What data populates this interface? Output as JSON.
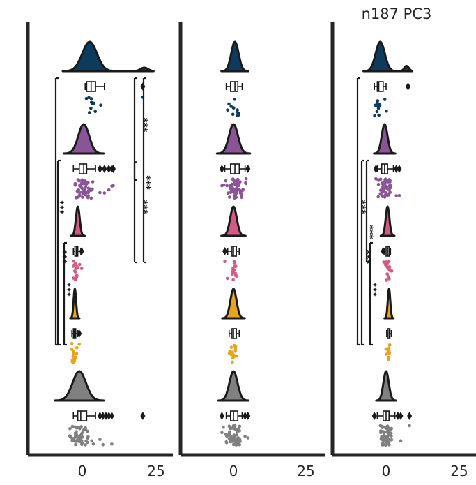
{
  "chart_data": [
    {
      "type": "raincloud",
      "title": "",
      "xlim": [
        -18,
        25
      ],
      "xticks": [
        0,
        25
      ],
      "groups": [
        {
          "name": "",
          "color": "#0d3b5e",
          "kde_peak": 2.5,
          "kde_width": 3.5,
          "secondary_peak": 21,
          "secondary_weight": 0.12,
          "box": [
            1.5,
            3,
            4.5,
            1,
            7.5
          ],
          "outliers": [
            20.5
          ]
        },
        {
          "name": "",
          "color": "#8a5597",
          "kde_peak": 0.5,
          "kde_width": 2.6,
          "secondary_peak": null,
          "secondary_weight": 0,
          "box": [
            -1,
            0.5,
            1.5,
            -3,
            4.5
          ],
          "outliers": [
            6,
            7.5,
            9,
            10,
            10.5
          ]
        },
        {
          "name": "",
          "color": "#d45a86",
          "kde_peak": -1.5,
          "kde_width": 0.9,
          "secondary_peak": null,
          "secondary_weight": 0,
          "box": [
            -2.5,
            -2,
            -1.5,
            -3,
            -0.5
          ],
          "outliers": [
            -0.2
          ]
        },
        {
          "name": "",
          "color": "#e8a320",
          "kde_peak": -2.5,
          "kde_width": 0.6,
          "secondary_peak": null,
          "secondary_weight": 0,
          "box": [
            -3,
            -2.7,
            -2.2,
            -3.5,
            -1.5
          ],
          "outliers": [
            -1
          ]
        },
        {
          "name": "",
          "color": "#808080",
          "kde_peak": -1,
          "kde_width": 3.2,
          "secondary_peak": null,
          "secondary_weight": 0,
          "box": [
            -1.5,
            -0.5,
            1.5,
            -3,
            4.5
          ],
          "outliers": [
            6,
            7,
            8,
            9,
            10,
            20.5
          ]
        }
      ],
      "significance": [
        {
          "from": 0,
          "to": 1,
          "label": "***"
        },
        {
          "from": 1,
          "to": 2,
          "label": "***"
        },
        {
          "from": 0,
          "to": 2,
          "label": "***"
        },
        {
          "from": 1,
          "to": 3,
          "label": "***"
        },
        {
          "from": 2,
          "to": 3,
          "label": "***"
        },
        {
          "from": 0,
          "to": 3,
          "label": "***"
        }
      ]
    },
    {
      "type": "raincloud",
      "title": "",
      "xlim": [
        -18,
        25
      ],
      "xticks": [
        0,
        25
      ],
      "groups": [
        {
          "name": "",
          "color": "#0d3b5e",
          "kde_peak": 0.5,
          "kde_width": 1.8,
          "secondary_peak": null,
          "secondary_weight": 0,
          "box": [
            -1,
            0.5,
            1.5,
            -2.5,
            3
          ],
          "outliers": []
        },
        {
          "name": "",
          "color": "#8a5597",
          "kde_peak": 0,
          "kde_width": 2.2,
          "secondary_peak": null,
          "secondary_weight": 0,
          "box": [
            -1,
            0.5,
            2,
            -3,
            4
          ],
          "outliers": [
            -4,
            5
          ]
        },
        {
          "name": "",
          "color": "#d45a86",
          "kde_peak": 0,
          "kde_width": 1.6,
          "secondary_peak": null,
          "secondary_weight": 0,
          "box": [
            -0.5,
            0,
            1,
            -2,
            2
          ],
          "outliers": [
            -3
          ]
        },
        {
          "name": "",
          "color": "#e8a320",
          "kde_peak": 0,
          "kde_width": 1.5,
          "secondary_peak": null,
          "secondary_weight": 0,
          "box": [
            -0.5,
            0,
            1,
            -1.5,
            2
          ],
          "outliers": []
        },
        {
          "name": "",
          "color": "#808080",
          "kde_peak": 0,
          "kde_width": 2.0,
          "secondary_peak": null,
          "secondary_weight": 0,
          "box": [
            -1,
            0,
            1.5,
            -2.5,
            3
          ],
          "outliers": [
            -4,
            4,
            5
          ]
        }
      ],
      "significance": []
    },
    {
      "type": "raincloud",
      "title": "n187 PC3",
      "xlim": [
        -18,
        25
      ],
      "xticks": [
        0,
        25
      ],
      "groups": [
        {
          "name": "",
          "color": "#0d3b5e",
          "kde_peak": -2,
          "kde_width": 2.2,
          "secondary_peak": 7,
          "secondary_weight": 0.18,
          "box": [
            -3,
            -2.5,
            -1,
            -4,
            0
          ],
          "outliers": [
            7.5
          ]
        },
        {
          "name": "",
          "color": "#8a5597",
          "kde_peak": -0.5,
          "kde_width": 1.4,
          "secondary_peak": null,
          "secondary_weight": 0,
          "box": [
            -1.5,
            -0.5,
            0.5,
            -3,
            2.5
          ],
          "outliers": [
            -3.5,
            3.5,
            4.5
          ]
        },
        {
          "name": "",
          "color": "#d45a86",
          "kde_peak": 0.5,
          "kde_width": 0.9,
          "secondary_peak": null,
          "secondary_weight": 0,
          "box": [
            0,
            0.5,
            1,
            -0.5,
            1.5
          ],
          "outliers": [
            -1
          ]
        },
        {
          "name": "",
          "color": "#e8a320",
          "kde_peak": 1,
          "kde_width": 0.6,
          "secondary_peak": null,
          "secondary_weight": 0,
          "box": [
            0.5,
            1,
            1.3,
            0.2,
            1.8
          ],
          "outliers": []
        },
        {
          "name": "",
          "color": "#808080",
          "kde_peak": 0,
          "kde_width": 1.3,
          "secondary_peak": null,
          "secondary_weight": 0,
          "box": [
            -1,
            0,
            1,
            -3,
            3
          ],
          "outliers": [
            -4,
            4,
            5,
            8
          ]
        }
      ],
      "significance": [
        {
          "from": 1,
          "to": 2,
          "label": "***"
        },
        {
          "from": 1,
          "to": 3,
          "label": "***"
        },
        {
          "from": 2,
          "to": 3,
          "label": "***"
        },
        {
          "from": 0,
          "to": 3,
          "label": "***"
        }
      ]
    }
  ]
}
